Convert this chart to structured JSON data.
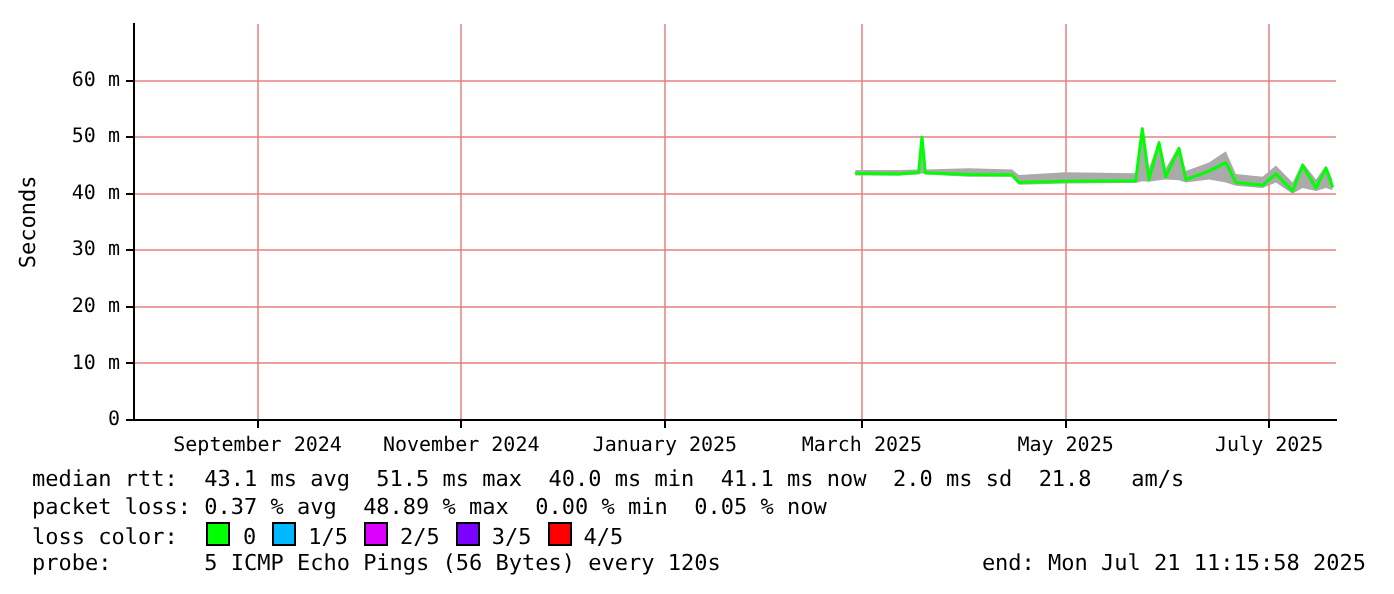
{
  "chart_data": {
    "type": "line",
    "ylabel": "Seconds",
    "legend_title": "loss color:",
    "legend": "bottom",
    "grid": true,
    "marker": "none",
    "line_style": "solid",
    "xlim": [
      "2024-07-26",
      "2025-07-21"
    ],
    "xticks": [
      {
        "value": "2024-09-01",
        "label": "September 2024"
      },
      {
        "value": "2024-11-01",
        "label": "November 2024"
      },
      {
        "value": "2025-01-01",
        "label": "January 2025"
      },
      {
        "value": "2025-03-01",
        "label": "March 2025"
      },
      {
        "value": "2025-05-01",
        "label": "May 2025"
      },
      {
        "value": "2025-07-01",
        "label": "July 2025"
      }
    ],
    "ylim": [
      0,
      70
    ],
    "yticks": [
      0,
      {
        "value": 10,
        "label": "10 m"
      },
      {
        "value": 20,
        "label": "20 m"
      },
      {
        "value": 30,
        "label": "30 m"
      },
      {
        "value": 40,
        "label": "40 m"
      },
      {
        "value": 50,
        "label": "50 m"
      },
      {
        "value": 60,
        "label": "60 m"
      }
    ],
    "x": [
      "2025-02-27",
      "2025-03-12",
      "2025-03-18",
      "2025-03-19",
      "2025-03-20",
      "2025-04-02",
      "2025-04-15",
      "2025-04-17",
      "2025-05-01",
      "2025-05-22",
      "2025-05-24",
      "2025-05-26",
      "2025-05-29",
      "2025-05-31",
      "2025-06-04",
      "2025-06-06",
      "2025-06-13",
      "2025-06-18",
      "2025-06-21",
      "2025-06-29",
      "2025-07-03",
      "2025-07-08",
      "2025-07-11",
      "2025-07-15",
      "2025-07-18",
      "2025-07-20"
    ],
    "series": [
      {
        "name": "0",
        "color": "#00ff00",
        "values": [
          43.6,
          43.5,
          43.8,
          50,
          43.7,
          43.4,
          43.3,
          42,
          42.2,
          42.3,
          51.5,
          42.5,
          49,
          43,
          48,
          42.5,
          44,
          45.5,
          42,
          41.5,
          43.5,
          40.5,
          45,
          41,
          44.5,
          41.1
        ],
        "lower": [
          43.2,
          43.2,
          43.4,
          43.6,
          43.4,
          43,
          43,
          41.6,
          41.8,
          41.9,
          42.2,
          42.1,
          42.4,
          42.5,
          42.4,
          42,
          42.5,
          42,
          41.4,
          41,
          42,
          40,
          41,
          40.5,
          41,
          40.6
        ],
        "upper": [
          44.2,
          44.2,
          44.3,
          50.5,
          44.3,
          44.5,
          44.3,
          43.3,
          43.8,
          43.6,
          52,
          44.5,
          49.5,
          44.5,
          48.5,
          44,
          45.5,
          47.5,
          43.5,
          43,
          45,
          42,
          45.5,
          42.5,
          45,
          42.5
        ]
      },
      {
        "name": "1/5",
        "color": "#00b8ff",
        "values": [
          null,
          null,
          null,
          null,
          null,
          null,
          null,
          null,
          null,
          null,
          null,
          null,
          null,
          null,
          null,
          null,
          null,
          null,
          null,
          null,
          null,
          null,
          null,
          null,
          null,
          null
        ]
      },
      {
        "name": "2/5",
        "color": "#dd00ff",
        "values": [
          null,
          null,
          null,
          null,
          null,
          null,
          null,
          null,
          null,
          null,
          null,
          null,
          null,
          null,
          null,
          null,
          null,
          null,
          null,
          null,
          null,
          null,
          null,
          null,
          null,
          null
        ]
      },
      {
        "name": "3/5",
        "color": "#7a00ff",
        "values": [
          null,
          null,
          null,
          null,
          null,
          null,
          null,
          null,
          null,
          null,
          null,
          null,
          null,
          null,
          null,
          null,
          null,
          null,
          null,
          null,
          null,
          null,
          null,
          null,
          null,
          null
        ]
      },
      {
        "name": "4/5",
        "color": "#ff0000",
        "values": [
          null,
          null,
          null,
          null,
          null,
          null,
          null,
          null,
          null,
          null,
          null,
          null,
          null,
          null,
          null,
          null,
          null,
          null,
          null,
          null,
          null,
          null,
          null,
          null,
          null,
          null
        ]
      }
    ],
    "annotations": [
      "median rtt:  43.1 ms avg  51.5 ms max  40.0 ms min  41.1 ms now  2.0 ms sd  21.8   am/s",
      "packet loss: 0.37 % avg  48.89 % max  0.00 % min  0.05 % now",
      "probe:       5 ICMP Echo Pings (56 Bytes) every 120s",
      "end: Mon Jul 21 11:15:58 2025"
    ]
  }
}
